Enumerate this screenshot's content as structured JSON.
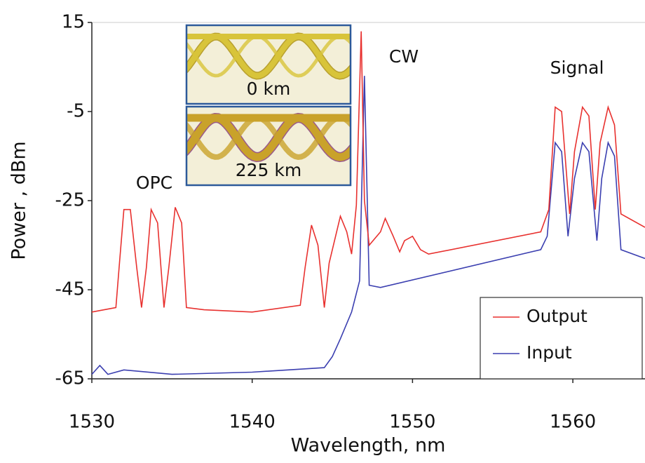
{
  "chart_data": {
    "type": "line",
    "x_label": "Wavelength, nm",
    "y_label": "Power , dBm",
    "xlim": [
      1530,
      1564.5
    ],
    "ylim": [
      -65,
      15
    ],
    "xticks": [
      1530,
      1540,
      1550,
      1560
    ],
    "yticks": [
      15,
      -5,
      -25,
      -45,
      -65
    ],
    "legend": "lower right",
    "annotations": [
      "OPC",
      "CW",
      "Signal"
    ],
    "inset_labels": [
      "0 km",
      "225 km"
    ],
    "series": [
      {
        "name": "Output",
        "color": "#e8312f",
        "x": [
          1530,
          1531.5,
          1531.7,
          1532,
          1532.4,
          1532.8,
          1533.1,
          1533.4,
          1533.7,
          1534.1,
          1534.5,
          1534.8,
          1535.2,
          1535.6,
          1535.9,
          1537,
          1540,
          1543,
          1543.3,
          1543.7,
          1544.1,
          1544.5,
          1544.8,
          1545.5,
          1545.9,
          1546.2,
          1546.5,
          1546.8,
          1547,
          1547.3,
          1548,
          1548.3,
          1548.8,
          1549.2,
          1549.5,
          1550,
          1550.5,
          1551,
          1558,
          1558.5,
          1558.9,
          1559.3,
          1559.8,
          1560.1,
          1560.6,
          1561,
          1561.4,
          1561.7,
          1562.2,
          1562.6,
          1563,
          1564.5
        ],
        "values": [
          -50,
          -49,
          -40,
          -27,
          -27,
          -40,
          -49,
          -40,
          -27,
          -30,
          -49,
          -40,
          -26.5,
          -30,
          -49,
          -49.5,
          -50,
          -48.5,
          -40,
          -30.5,
          -35,
          -49,
          -39,
          -28.5,
          -32,
          -37,
          -26,
          13,
          -25,
          -35,
          -32,
          -29,
          -33,
          -36.5,
          -34,
          -33,
          -36,
          -37,
          -32,
          -27,
          -4,
          -5,
          -28,
          -14,
          -4,
          -6,
          -27,
          -12,
          -4,
          -8,
          -28,
          -31
        ]
      },
      {
        "name": "Input",
        "color": "#3b3fb0",
        "x": [
          1530,
          1530.5,
          1531,
          1532,
          1535,
          1540,
          1544.5,
          1545,
          1545.5,
          1546.2,
          1546.7,
          1547,
          1547.3,
          1548,
          1558,
          1558.4,
          1558.9,
          1559.3,
          1559.7,
          1560.1,
          1560.6,
          1561,
          1561.5,
          1561.8,
          1562.2,
          1562.6,
          1563,
          1564.5
        ],
        "values": [
          -64,
          -62,
          -64,
          -63,
          -64,
          -63.5,
          -62.5,
          -60,
          -56,
          -50,
          -43,
          3,
          -44,
          -44.5,
          -36,
          -33,
          -12,
          -14,
          -33,
          -20,
          -12,
          -14,
          -34,
          -20,
          -12,
          -15,
          -36,
          -38
        ]
      }
    ]
  }
}
